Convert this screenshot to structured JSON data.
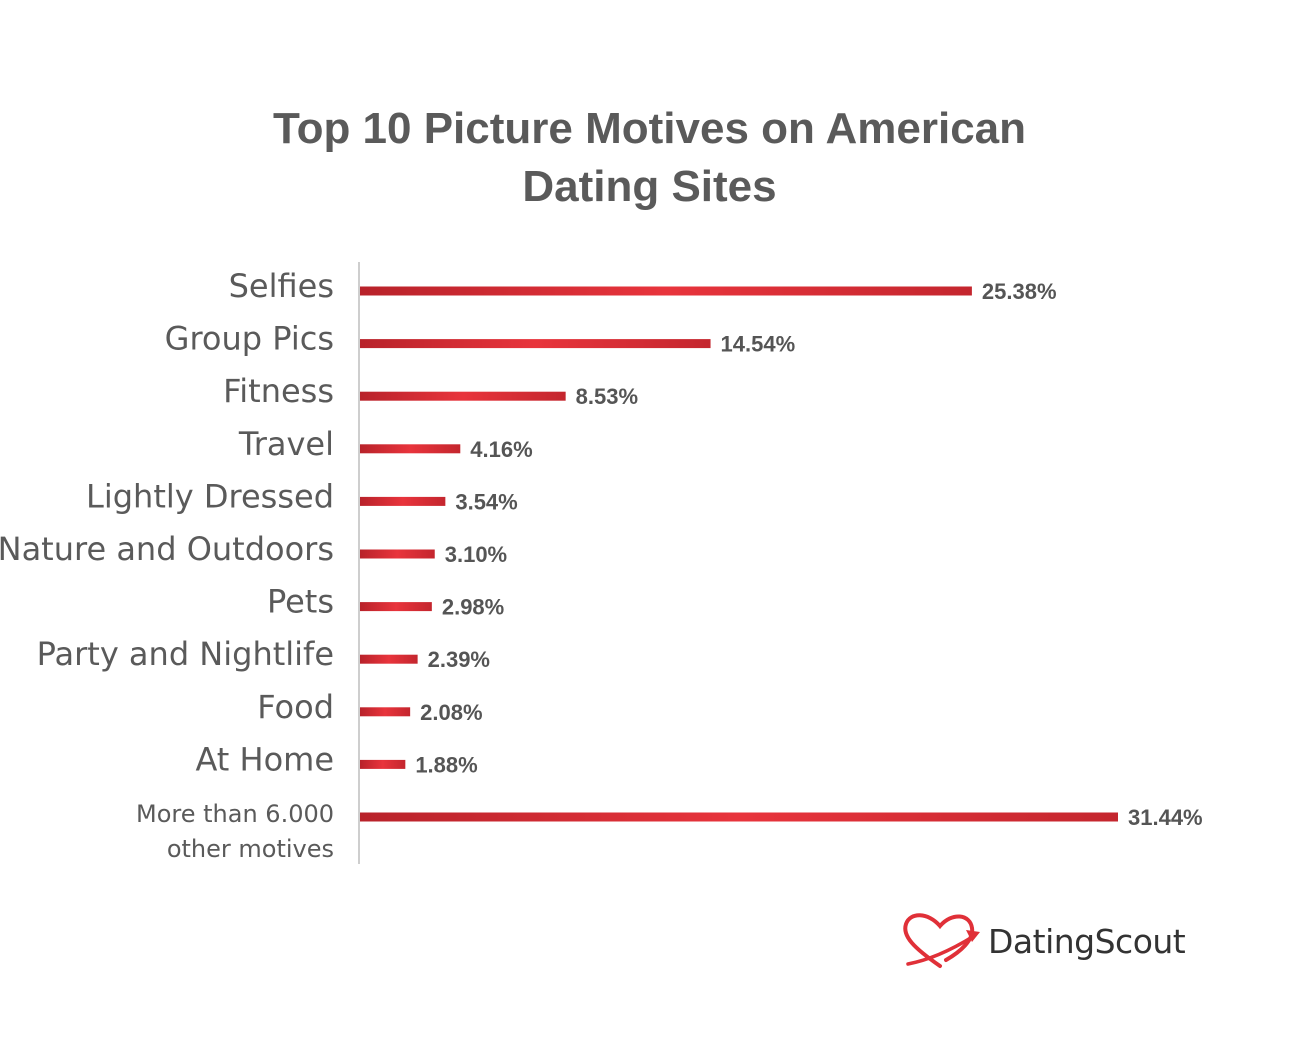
{
  "chart_data": {
    "type": "bar",
    "orientation": "horizontal",
    "title_lines": [
      "Top 10 Picture Motives on American",
      "Dating Sites"
    ],
    "categories": [
      [
        "Selfies"
      ],
      [
        "Group Pics"
      ],
      [
        "Fitness"
      ],
      [
        "Travel"
      ],
      [
        "Lightly Dressed"
      ],
      [
        "Nature and Outdoors"
      ],
      [
        "Pets"
      ],
      [
        "Party and Nightlife"
      ],
      [
        "Food"
      ],
      [
        "At Home"
      ],
      [
        "More than 6.000",
        "other motives"
      ]
    ],
    "values": [
      25.38,
      14.54,
      8.53,
      4.16,
      3.54,
      3.1,
      2.98,
      2.39,
      2.08,
      1.88,
      31.44
    ],
    "value_labels": [
      "25.38%",
      "14.54%",
      "8.53%",
      "4.16%",
      "3.54%",
      "3.10%",
      "2.98%",
      "2.39%",
      "2.08%",
      "1.88%",
      "31.44%"
    ],
    "xlim": [
      0,
      31.44
    ],
    "grid": false,
    "bar_color": "#d42a32",
    "bar_color_light": "#e8343c"
  },
  "brand": {
    "name": "DatingScout",
    "logo_icon": "heart-arrow-icon",
    "logo_color": "#e03038"
  }
}
